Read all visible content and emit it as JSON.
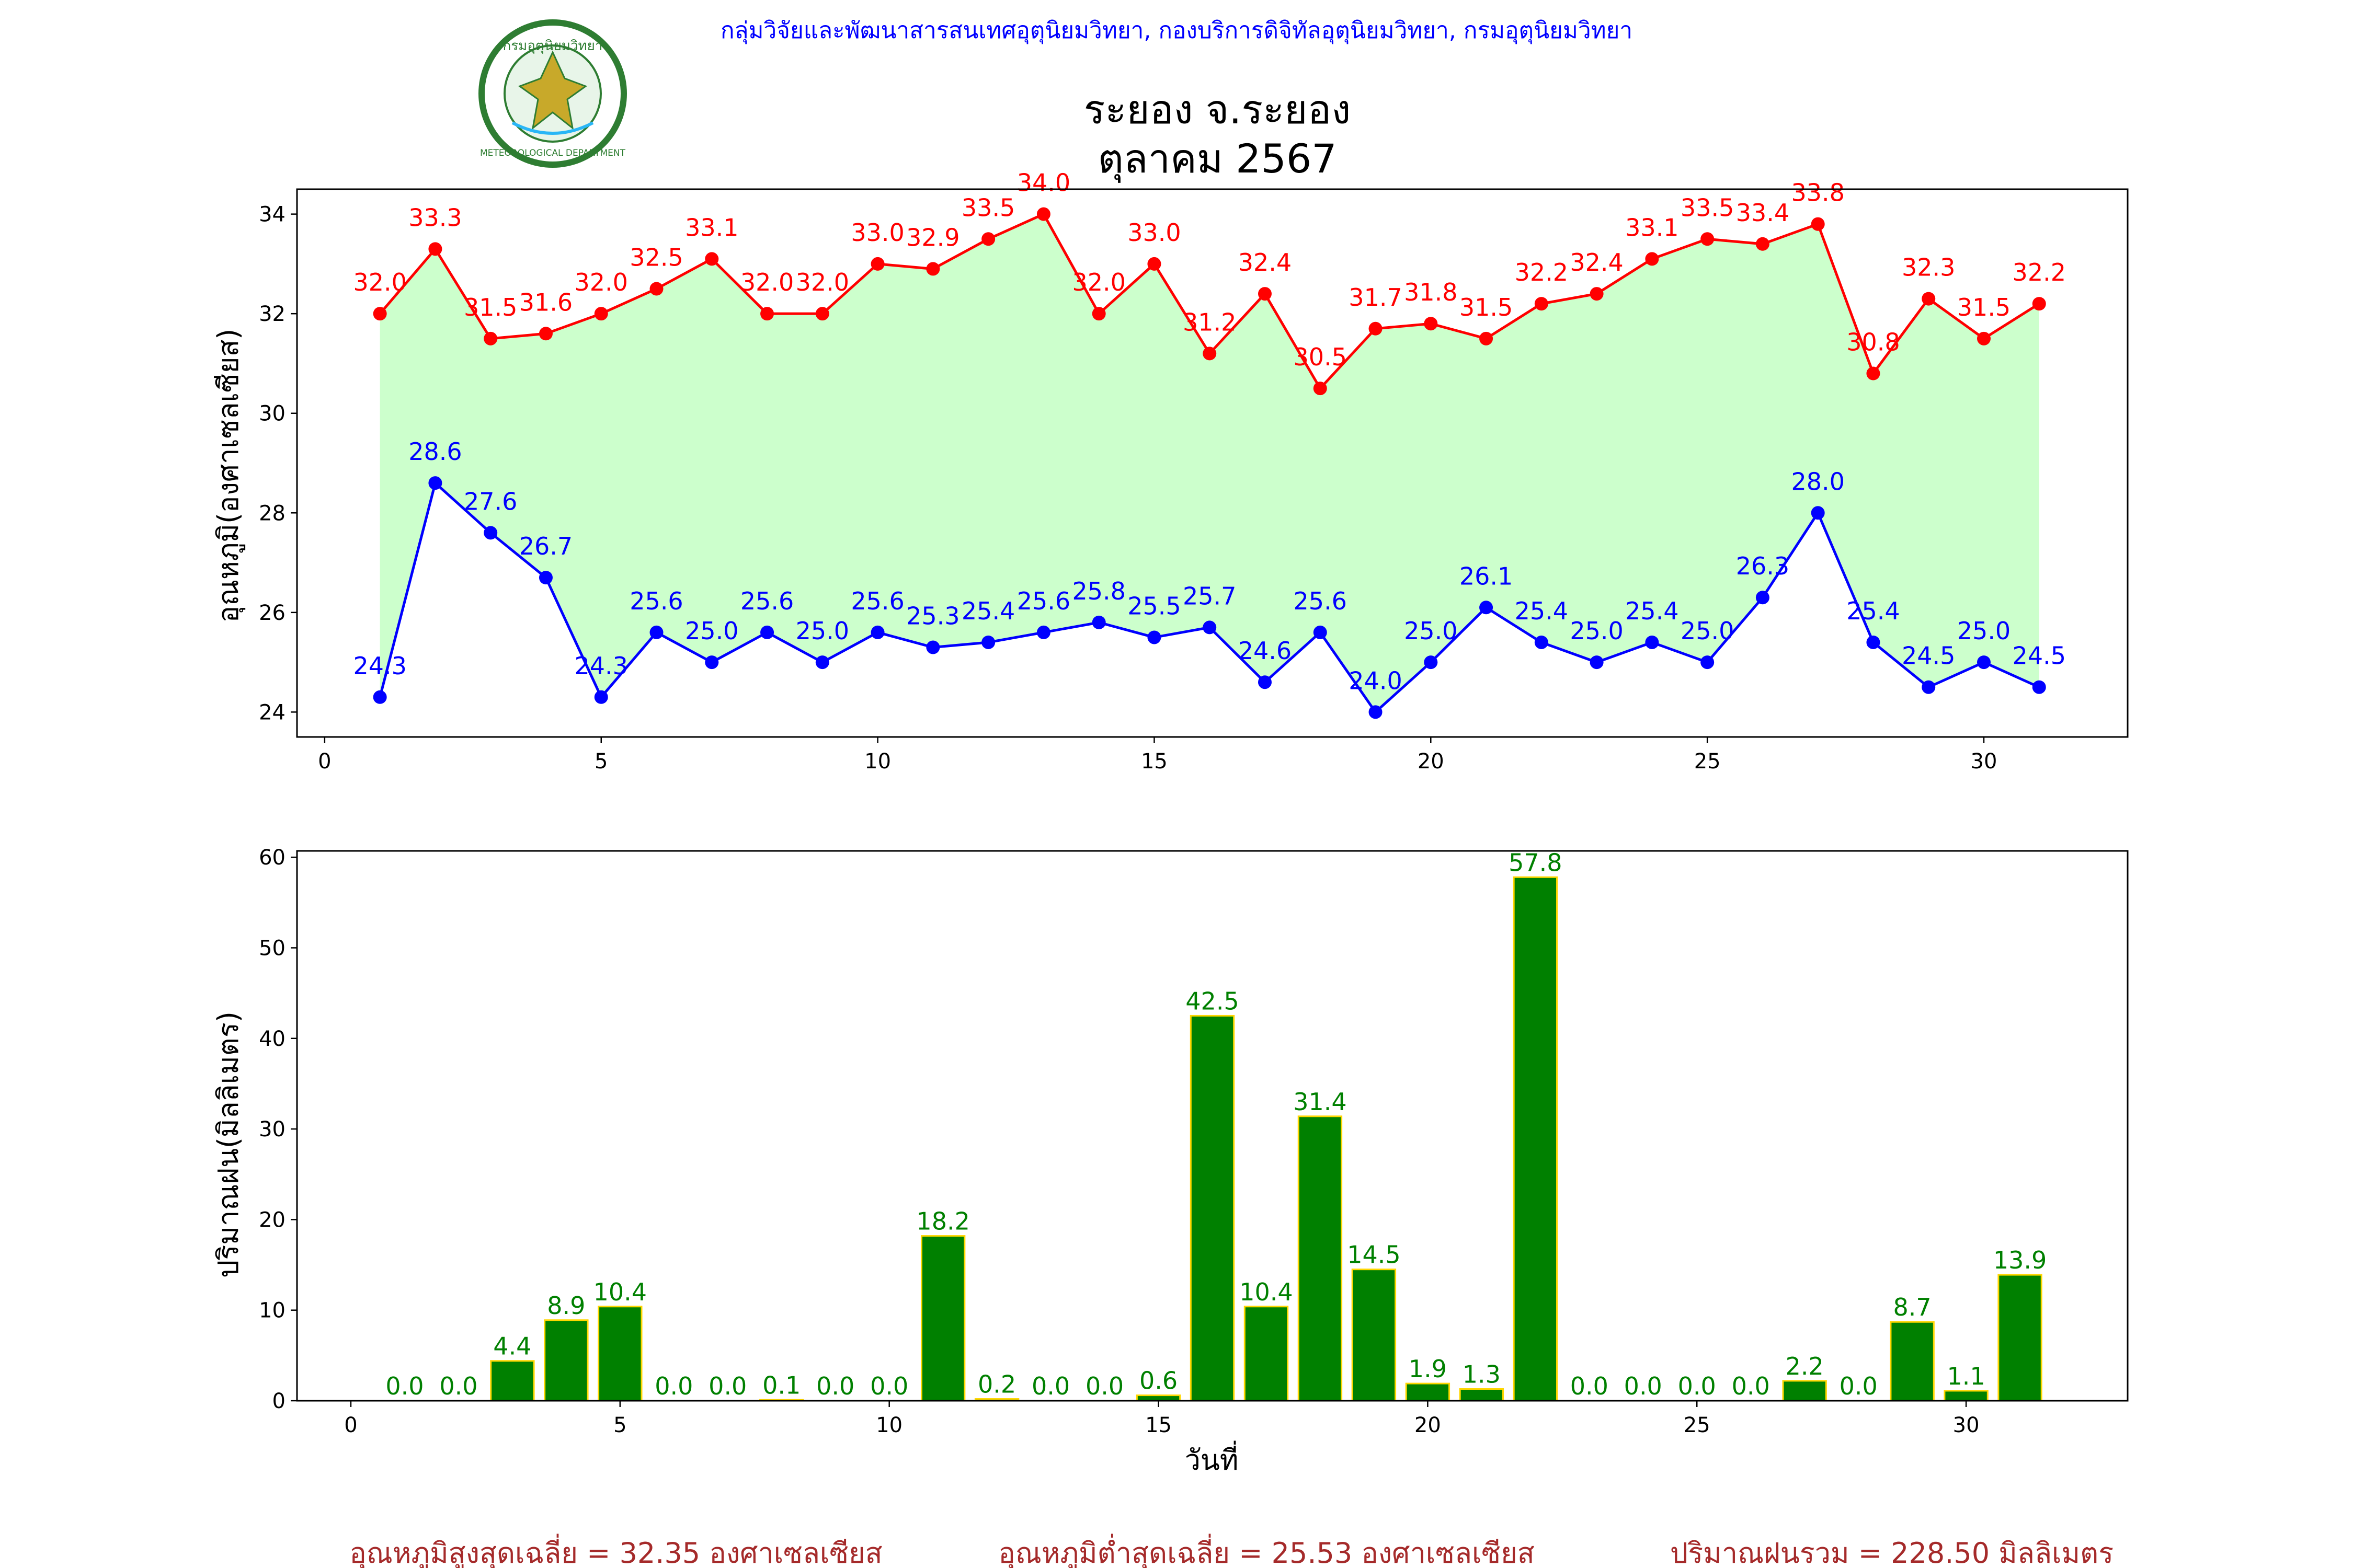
{
  "header": {
    "org_line": "กลุ่มวิจัยและพัฒนาสารสนเทศอุตุนิยมวิทยา, กองบริการดิจิทัลอุตุนิยมวิทยา, กรมอุตุนิยมวิทยา",
    "title": "ระยอง จ.ระยอง",
    "subtitle": "ตุลาคม 2567",
    "logo_text_top": "กรมอุตุนิยมวิทยา",
    "logo_text_bottom": "METEOROLOGICAL DEPARTMENT"
  },
  "colors": {
    "max_line": "#ff0000",
    "min_line": "#0000ff",
    "fill_band": "#ccffcc",
    "bar_fill": "#008000",
    "bar_edge": "#ffd700",
    "bar_label": "#008000",
    "header_text": "#0000ff",
    "summary_text": "#a52a2a"
  },
  "chart_data": [
    {
      "type": "line",
      "ylabel": "อุณหภูมิ(องศาเซลเซียส)",
      "xlabel": "",
      "xlim": [
        -0.5,
        32.6
      ],
      "ylim": [
        23.5,
        34.5
      ],
      "xticks": [
        0,
        5,
        10,
        15,
        20,
        25,
        30
      ],
      "yticks": [
        24,
        26,
        28,
        30,
        32,
        34
      ],
      "fill_between_series": true,
      "x": [
        1,
        2,
        3,
        4,
        5,
        6,
        7,
        8,
        9,
        10,
        11,
        12,
        13,
        14,
        15,
        16,
        17,
        18,
        19,
        20,
        21,
        22,
        23,
        24,
        25,
        26,
        27,
        28,
        29,
        30,
        31
      ],
      "series": [
        {
          "values": [
            32.0,
            33.3,
            31.5,
            31.6,
            32.0,
            32.5,
            33.1,
            32.0,
            32.0,
            33.0,
            32.9,
            33.5,
            34.0,
            32.0,
            33.0,
            31.2,
            32.4,
            30.5,
            31.7,
            31.8,
            31.5,
            32.2,
            32.4,
            33.1,
            33.5,
            33.4,
            33.8,
            30.8,
            32.3,
            31.5,
            32.2
          ]
        },
        {
          "values": [
            24.3,
            28.6,
            27.6,
            26.7,
            24.3,
            25.6,
            25.0,
            25.6,
            25.0,
            25.6,
            25.3,
            25.4,
            25.6,
            25.8,
            25.5,
            25.7,
            24.6,
            25.6,
            24.0,
            25.0,
            26.1,
            25.4,
            25.0,
            25.4,
            25.0,
            26.3,
            28.0,
            25.4,
            24.5,
            25.0,
            24.5
          ]
        }
      ]
    },
    {
      "type": "bar",
      "ylabel": "ปริมาณฝน(มิลลิเมตร)",
      "xlabel": "วันที่",
      "xlim": [
        -1,
        33
      ],
      "ylim": [
        0,
        60.7
      ],
      "xticks": [
        0,
        5,
        10,
        15,
        20,
        25,
        30
      ],
      "yticks": [
        0,
        10,
        20,
        30,
        40,
        50,
        60
      ],
      "x": [
        1,
        2,
        3,
        4,
        5,
        6,
        7,
        8,
        9,
        10,
        11,
        12,
        13,
        14,
        15,
        16,
        17,
        18,
        19,
        20,
        21,
        22,
        23,
        24,
        25,
        26,
        27,
        28,
        29,
        30,
        31
      ],
      "values": [
        0.0,
        0.0,
        4.4,
        8.9,
        10.4,
        0.0,
        0.0,
        0.1,
        0.0,
        0.0,
        18.2,
        0.2,
        0.0,
        0.0,
        0.6,
        42.5,
        10.4,
        31.4,
        14.5,
        1.9,
        1.3,
        57.8,
        0.0,
        0.0,
        0.0,
        0.0,
        2.2,
        0.0,
        8.7,
        1.1,
        13.9
      ]
    }
  ],
  "summary": {
    "avg_max": "อุณหภูมิสูงสุดเฉลี่ย = 32.35 องศาเซลเซียส",
    "avg_min": "อุณหภูมิต่ำสุดเฉลี่ย = 25.53 องศาเซลเซียส",
    "total_rain": "ปริมาณฝนรวม = 228.50 มิลลิเมตร"
  }
}
